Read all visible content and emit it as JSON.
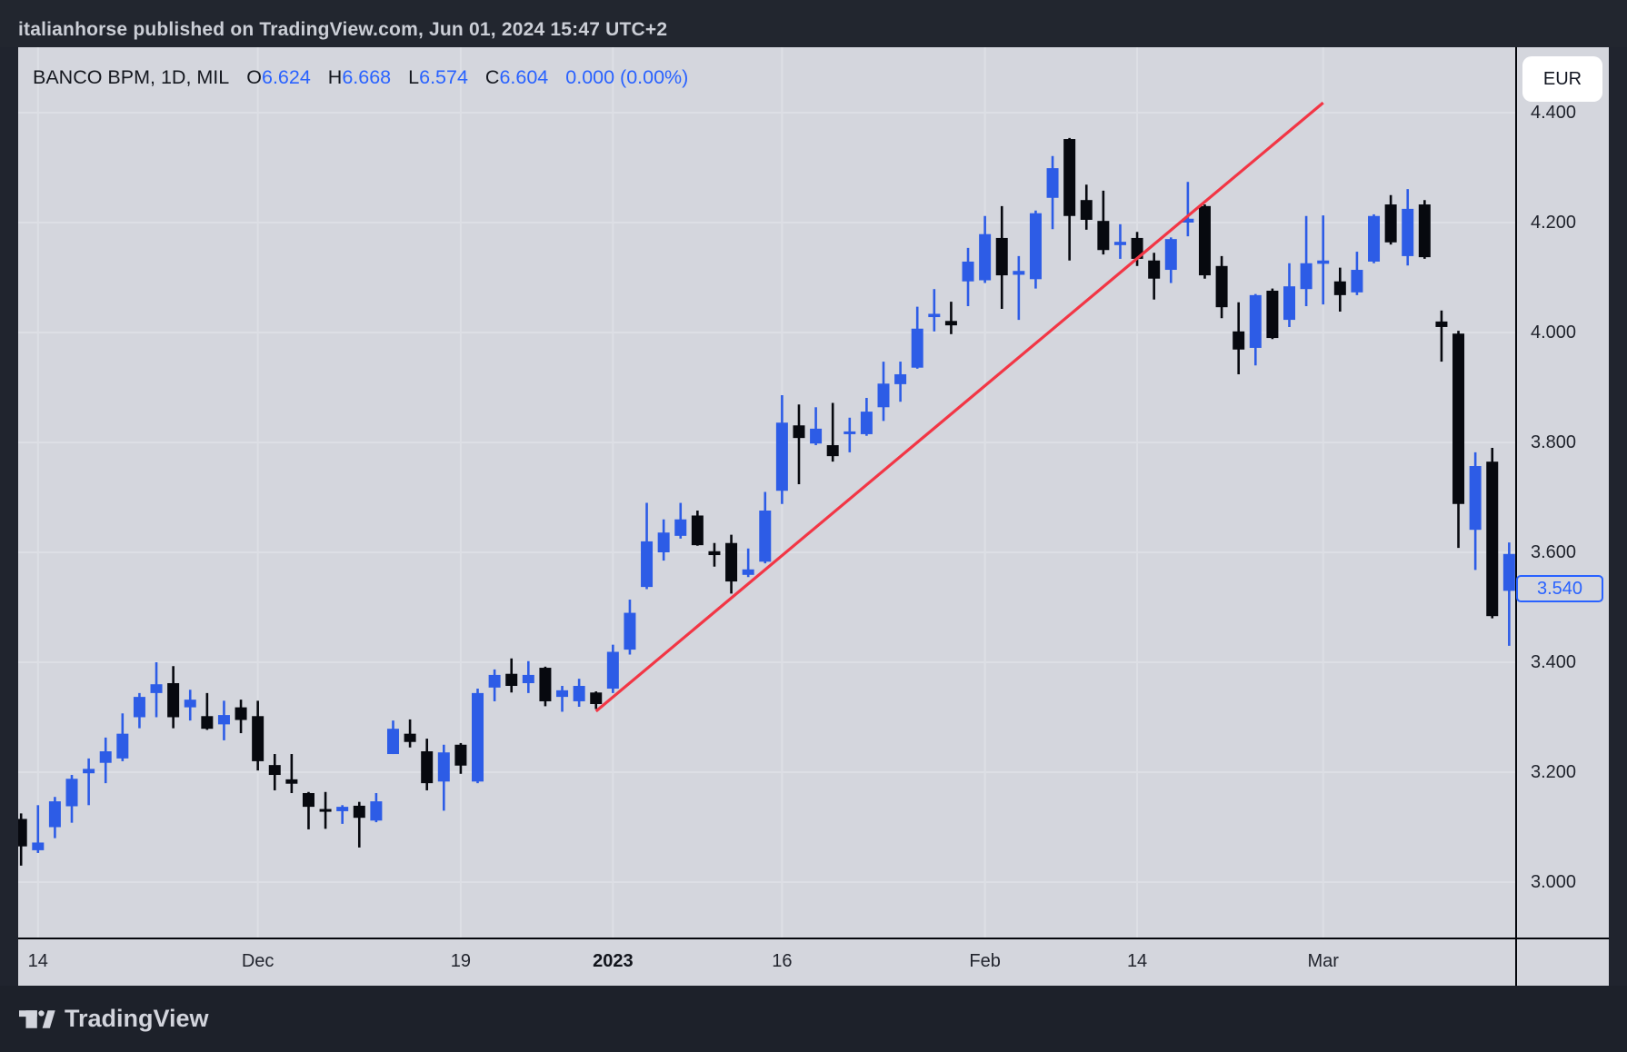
{
  "banner": {
    "username": "italianhorse",
    "rest": " published on TradingView.com, Jun 01, 2024 15:47 UTC+2"
  },
  "legend": {
    "symbol": "BANCO BPM, 1D, MIL",
    "o_label": "O",
    "o": "6.624",
    "h_label": "H",
    "h": "6.668",
    "l_label": "L",
    "l": "6.574",
    "c_label": "C",
    "c": "6.604",
    "change": "0.000 (0.00%)"
  },
  "price_axis": {
    "currency": "EUR",
    "last_price": "3.540",
    "last_price_value": 3.54
  },
  "footer": {
    "brand": "TradingView"
  },
  "colors": {
    "up": "#2d5ce6",
    "down": "#07090f",
    "trendline": "#f23645",
    "grid": "#dddfe5",
    "accent_blue": "#2962ff"
  },
  "chart_data": {
    "type": "candlestick",
    "title": "BANCO BPM daily candlestick chart (MIL), Nov 2022 - Mar 2023",
    "ylabel": "EUR",
    "ylim": [
      2.95,
      4.45
    ],
    "grid": true,
    "layout": {
      "dx": 18.604,
      "x0": 3.2,
      "p0": 4.2,
      "y0": 193,
      "scale": 605,
      "candle_w": 13,
      "wick_w": 2.6
    },
    "y_ticks": [
      {
        "v": 4.4,
        "label": "4.400"
      },
      {
        "v": 4.2,
        "label": "4.200"
      },
      {
        "v": 4.0,
        "label": "4.000"
      },
      {
        "v": 3.8,
        "label": "3.800"
      },
      {
        "v": 3.6,
        "label": "3.600"
      },
      {
        "v": 3.4,
        "label": "3.400"
      },
      {
        "v": 3.2,
        "label": "3.200"
      },
      {
        "v": 3.0,
        "label": "3.000"
      }
    ],
    "x_ticks": [
      {
        "i": 1,
        "label": "14"
      },
      {
        "i": 14,
        "label": "Dec"
      },
      {
        "i": 26,
        "label": "19"
      },
      {
        "i": 35,
        "label": "2023",
        "bold": true
      },
      {
        "i": 45,
        "label": "16"
      },
      {
        "i": 57,
        "label": "Feb"
      },
      {
        "i": 66,
        "label": "14"
      },
      {
        "i": 77,
        "label": "Mar"
      }
    ],
    "trendline": {
      "from": {
        "i": 34,
        "p": 3.311
      },
      "to": {
        "i": 77,
        "p": 4.418
      }
    },
    "candles": [
      [
        3.115,
        3.125,
        3.03,
        3.065,
        "d"
      ],
      [
        3.058,
        3.14,
        3.053,
        3.072,
        "u"
      ],
      [
        3.1,
        3.155,
        3.08,
        3.147,
        "u"
      ],
      [
        3.138,
        3.195,
        3.108,
        3.188,
        "u"
      ],
      [
        3.198,
        3.225,
        3.14,
        3.206,
        "u"
      ],
      [
        3.217,
        3.263,
        3.18,
        3.238,
        "u"
      ],
      [
        3.225,
        3.307,
        3.22,
        3.27,
        "u"
      ],
      [
        3.3,
        3.344,
        3.28,
        3.337,
        "u"
      ],
      [
        3.344,
        3.4,
        3.3,
        3.36,
        "u"
      ],
      [
        3.362,
        3.393,
        3.28,
        3.3,
        "d"
      ],
      [
        3.318,
        3.35,
        3.294,
        3.332,
        "u"
      ],
      [
        3.302,
        3.344,
        3.277,
        3.279,
        "d"
      ],
      [
        3.287,
        3.33,
        3.258,
        3.304,
        "u"
      ],
      [
        3.318,
        3.332,
        3.271,
        3.295,
        "d"
      ],
      [
        3.302,
        3.33,
        3.203,
        3.22,
        "d"
      ],
      [
        3.213,
        3.233,
        3.167,
        3.195,
        "d"
      ],
      [
        3.187,
        3.233,
        3.162,
        3.179,
        "d"
      ],
      [
        3.162,
        3.164,
        3.096,
        3.137,
        "d"
      ],
      [
        3.133,
        3.164,
        3.097,
        3.128,
        "d"
      ],
      [
        3.129,
        3.14,
        3.106,
        3.137,
        "u"
      ],
      [
        3.139,
        3.146,
        3.063,
        3.117,
        "d"
      ],
      [
        3.112,
        3.162,
        3.109,
        3.147,
        "u"
      ],
      [
        3.233,
        3.294,
        3.233,
        3.279,
        "u"
      ],
      [
        3.27,
        3.296,
        3.245,
        3.255,
        "d"
      ],
      [
        3.238,
        3.261,
        3.167,
        3.18,
        "d"
      ],
      [
        3.183,
        3.25,
        3.13,
        3.236,
        "u"
      ],
      [
        3.25,
        3.253,
        3.197,
        3.212,
        "d"
      ],
      [
        3.183,
        3.352,
        3.18,
        3.344,
        "u"
      ],
      [
        3.354,
        3.387,
        3.329,
        3.377,
        "u"
      ],
      [
        3.379,
        3.407,
        3.345,
        3.357,
        "d"
      ],
      [
        3.362,
        3.402,
        3.344,
        3.377,
        "u"
      ],
      [
        3.39,
        3.392,
        3.32,
        3.329,
        "d"
      ],
      [
        3.337,
        3.357,
        3.31,
        3.349,
        "u"
      ],
      [
        3.329,
        3.37,
        3.319,
        3.357,
        "u"
      ],
      [
        3.345,
        3.347,
        3.315,
        3.324,
        "d"
      ],
      [
        3.352,
        3.432,
        3.344,
        3.419,
        "u"
      ],
      [
        3.423,
        3.514,
        3.414,
        3.49,
        "u"
      ],
      [
        3.537,
        3.69,
        3.533,
        3.62,
        "u"
      ],
      [
        3.6,
        3.66,
        3.585,
        3.636,
        "u"
      ],
      [
        3.63,
        3.69,
        3.625,
        3.66,
        "u"
      ],
      [
        3.667,
        3.676,
        3.612,
        3.613,
        "d"
      ],
      [
        3.602,
        3.617,
        3.574,
        3.595,
        "d"
      ],
      [
        3.617,
        3.632,
        3.525,
        3.547,
        "d"
      ],
      [
        3.559,
        3.607,
        3.555,
        3.569,
        "u"
      ],
      [
        3.583,
        3.71,
        3.58,
        3.676,
        "u"
      ],
      [
        3.712,
        3.886,
        3.688,
        3.836,
        "u"
      ],
      [
        3.831,
        3.869,
        3.724,
        3.808,
        "d"
      ],
      [
        3.798,
        3.864,
        3.795,
        3.825,
        "u"
      ],
      [
        3.795,
        3.872,
        3.765,
        3.775,
        "d"
      ],
      [
        3.815,
        3.845,
        3.782,
        3.82,
        "u"
      ],
      [
        3.815,
        3.881,
        3.812,
        3.856,
        "u"
      ],
      [
        3.864,
        3.947,
        3.839,
        3.907,
        "u"
      ],
      [
        3.906,
        3.947,
        3.874,
        3.924,
        "u"
      ],
      [
        3.936,
        4.047,
        3.934,
        4.007,
        "u"
      ],
      [
        4.028,
        4.079,
        4.002,
        4.034,
        "u"
      ],
      [
        4.021,
        4.056,
        3.997,
        4.013,
        "d"
      ],
      [
        4.093,
        4.154,
        4.048,
        4.129,
        "u"
      ],
      [
        4.095,
        4.212,
        4.09,
        4.179,
        "u"
      ],
      [
        4.172,
        4.23,
        4.043,
        4.104,
        "d"
      ],
      [
        4.105,
        4.139,
        4.023,
        4.112,
        "u"
      ],
      [
        4.097,
        4.222,
        4.08,
        4.217,
        "u"
      ],
      [
        4.245,
        4.321,
        4.188,
        4.299,
        "u"
      ],
      [
        4.352,
        4.354,
        4.131,
        4.212,
        "d"
      ],
      [
        4.241,
        4.269,
        4.187,
        4.205,
        "d"
      ],
      [
        4.203,
        4.258,
        4.142,
        4.15,
        "d"
      ],
      [
        4.159,
        4.197,
        4.134,
        4.165,
        "u"
      ],
      [
        4.172,
        4.183,
        4.121,
        4.134,
        "d"
      ],
      [
        4.131,
        4.145,
        4.06,
        4.098,
        "d"
      ],
      [
        4.114,
        4.173,
        4.09,
        4.17,
        "u"
      ],
      [
        4.2,
        4.274,
        4.175,
        4.207,
        "u"
      ],
      [
        4.23,
        4.233,
        4.098,
        4.104,
        "d"
      ],
      [
        4.121,
        4.139,
        4.026,
        4.046,
        "d"
      ],
      [
        4.002,
        4.055,
        3.924,
        3.969,
        "d"
      ],
      [
        3.972,
        4.07,
        3.94,
        4.068,
        "u"
      ],
      [
        4.076,
        4.08,
        3.988,
        3.99,
        "d"
      ],
      [
        4.023,
        4.126,
        4.01,
        4.084,
        "u"
      ],
      [
        4.079,
        4.212,
        4.048,
        4.126,
        "u"
      ],
      [
        4.125,
        4.213,
        4.051,
        4.131,
        "u"
      ],
      [
        4.093,
        4.118,
        4.038,
        4.068,
        "d"
      ],
      [
        4.073,
        4.147,
        4.068,
        4.114,
        "u"
      ],
      [
        4.129,
        4.215,
        4.126,
        4.212,
        "u"
      ],
      [
        4.233,
        4.25,
        4.16,
        4.164,
        "d"
      ],
      [
        4.139,
        4.261,
        4.122,
        4.225,
        "u"
      ],
      [
        4.233,
        4.241,
        4.134,
        4.137,
        "d"
      ],
      [
        4.02,
        4.04,
        3.947,
        4.01,
        "d"
      ],
      [
        3.998,
        4.003,
        3.608,
        3.688,
        "d"
      ],
      [
        3.641,
        3.782,
        3.568,
        3.757,
        "u"
      ],
      [
        3.765,
        3.79,
        3.48,
        3.484,
        "d"
      ],
      [
        3.53,
        3.618,
        3.43,
        3.597,
        "u"
      ]
    ]
  }
}
